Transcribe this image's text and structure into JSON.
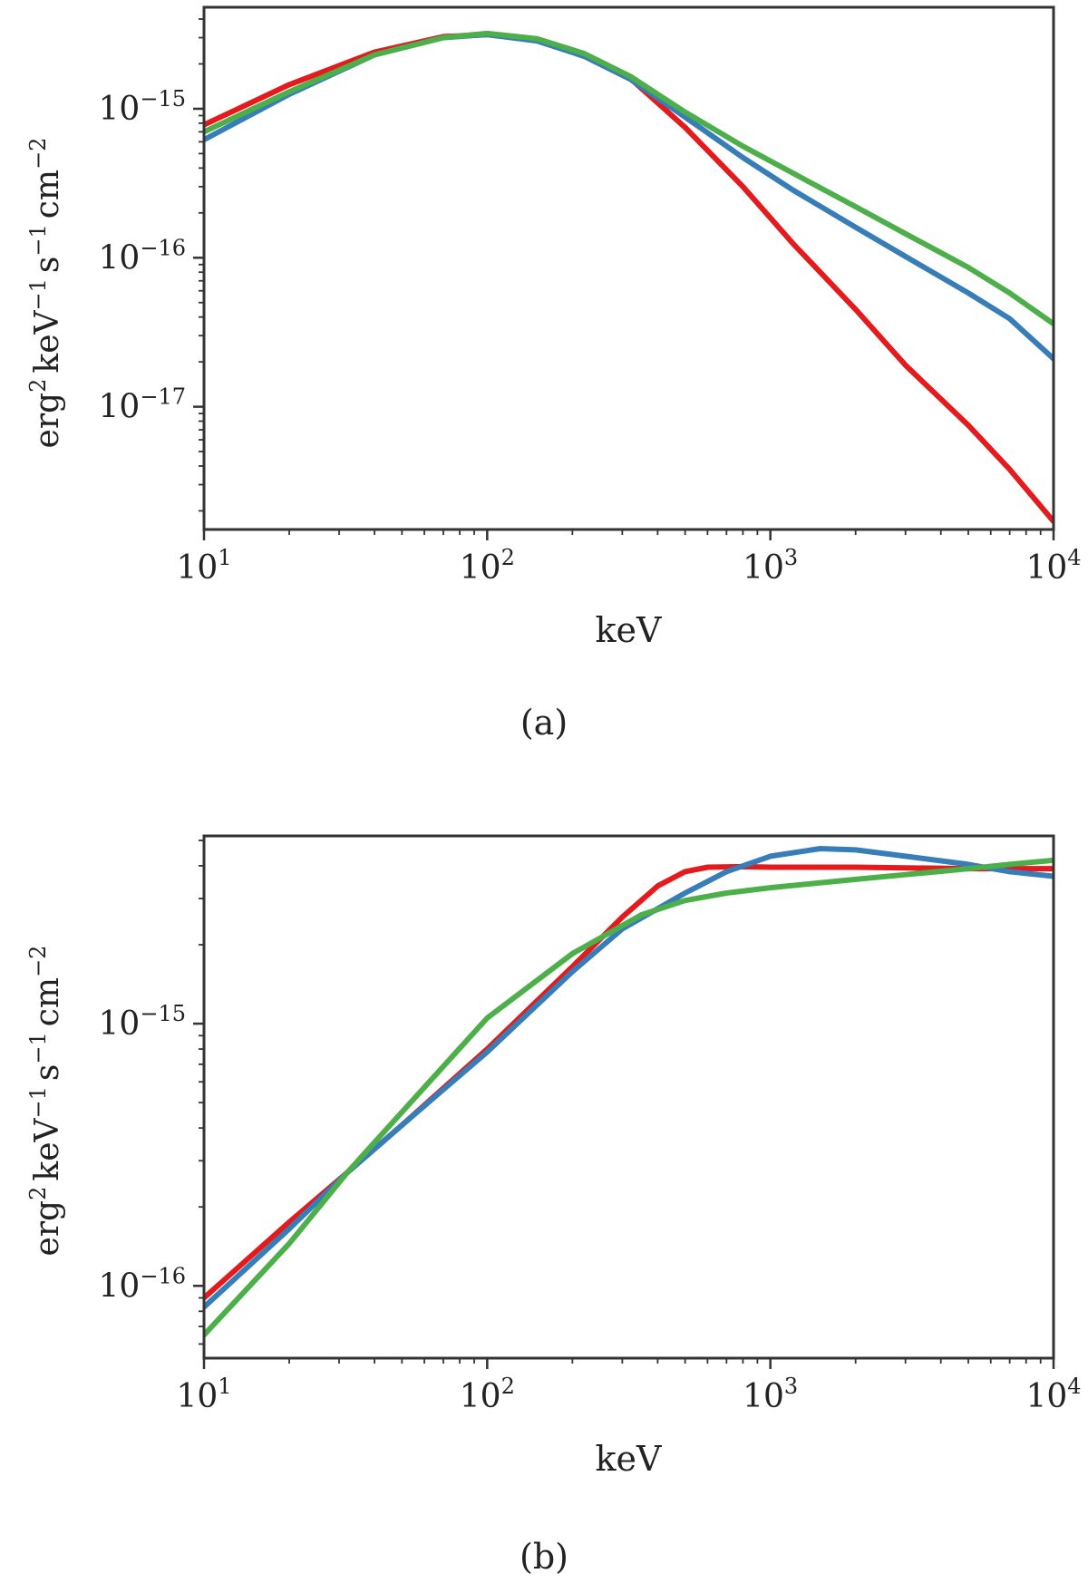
{
  "figure": {
    "description_labels": [
      "(a)",
      "(b)"
    ]
  },
  "colors": {
    "red": "#e41a1c",
    "blue": "#377eb8",
    "green": "#4daf4a",
    "axis": "#333333",
    "text": "#222222"
  },
  "chart_data": [
    {
      "panel_label": "(a)",
      "type": "line",
      "xscale": "log",
      "yscale": "log",
      "xlabel": "keV",
      "ylabel_parts": {
        "erg": "erg",
        "erg_exp": "2",
        "kev": "keV",
        "kev_exp": "−1",
        "s": "s",
        "s_exp": "−1",
        "cm": "cm",
        "cm_exp": "−2"
      },
      "xlim": [
        10,
        10000
      ],
      "ylim": [
        1.5e-18,
        4.8e-15
      ],
      "xticks": [
        {
          "value": 10,
          "base": "10",
          "exp": "1"
        },
        {
          "value": 100,
          "base": "10",
          "exp": "2"
        },
        {
          "value": 1000,
          "base": "10",
          "exp": "3"
        },
        {
          "value": 10000,
          "base": "10",
          "exp": "4"
        }
      ],
      "yticks": [
        {
          "value": 1e-15,
          "base": "10",
          "exp": "−15"
        },
        {
          "value": 1e-16,
          "base": "10",
          "exp": "−16"
        },
        {
          "value": 1e-17,
          "base": "10",
          "exp": "−17"
        }
      ],
      "series": [
        {
          "name": "red",
          "color": "#e41a1c",
          "x": [
            10,
            20,
            40,
            70,
            100,
            150,
            220,
            320,
            500,
            800,
            1200,
            2000,
            3000,
            5000,
            7000,
            10000
          ],
          "y": [
            7.8e-16,
            1.45e-15,
            2.4e-15,
            3.05e-15,
            3.15e-15,
            2.9e-15,
            2.3e-15,
            1.6e-15,
            7.5e-16,
            3e-16,
            1.25e-16,
            4.5e-17,
            1.9e-17,
            7.5e-18,
            3.8e-18,
            1.7e-18
          ]
        },
        {
          "name": "blue",
          "color": "#377eb8",
          "x": [
            10,
            20,
            40,
            70,
            100,
            150,
            220,
            320,
            500,
            800,
            1200,
            2000,
            3000,
            5000,
            7000,
            10000
          ],
          "y": [
            6.2e-16,
            1.25e-15,
            2.3e-15,
            3e-15,
            3.15e-15,
            2.85e-15,
            2.25e-15,
            1.58e-15,
            8.8e-16,
            4.7e-16,
            2.85e-16,
            1.6e-16,
            1.02e-16,
            5.8e-17,
            3.9e-17,
            2.1e-17
          ]
        },
        {
          "name": "green",
          "color": "#4daf4a",
          "x": [
            10,
            20,
            40,
            70,
            100,
            150,
            220,
            320,
            500,
            800,
            1200,
            2000,
            3000,
            5000,
            7000,
            10000
          ],
          "y": [
            7e-16,
            1.3e-15,
            2.3e-15,
            3e-15,
            3.2e-15,
            2.95e-15,
            2.35e-15,
            1.65e-15,
            9.5e-16,
            5.6e-16,
            3.7e-16,
            2.2e-16,
            1.45e-16,
            8.6e-17,
            5.8e-17,
            3.6e-17
          ]
        }
      ]
    },
    {
      "panel_label": "(b)",
      "type": "line",
      "xscale": "log",
      "yscale": "log",
      "xlabel": "keV",
      "ylabel_parts": {
        "erg": "erg",
        "erg_exp": "2",
        "kev": "keV",
        "kev_exp": "−1",
        "s": "s",
        "s_exp": "−1",
        "cm": "cm",
        "cm_exp": "−2"
      },
      "xlim": [
        10,
        10000
      ],
      "ylim": [
        5.3e-17,
        5.2e-15
      ],
      "xticks": [
        {
          "value": 10,
          "base": "10",
          "exp": "1"
        },
        {
          "value": 100,
          "base": "10",
          "exp": "2"
        },
        {
          "value": 1000,
          "base": "10",
          "exp": "3"
        },
        {
          "value": 10000,
          "base": "10",
          "exp": "4"
        }
      ],
      "yticks": [
        {
          "value": 1e-15,
          "base": "10",
          "exp": "−15"
        },
        {
          "value": 1e-16,
          "base": "10",
          "exp": "−16"
        }
      ],
      "series": [
        {
          "name": "red",
          "color": "#e41a1c",
          "x": [
            10,
            20,
            32,
            50,
            100,
            200,
            300,
            400,
            500,
            600,
            800,
            1000,
            2000,
            5000,
            10000
          ],
          "y": [
            9e-17,
            1.75e-16,
            2.7e-16,
            4.1e-16,
            8e-16,
            1.65e-15,
            2.55e-15,
            3.35e-15,
            3.8e-15,
            3.95e-15,
            3.97e-15,
            3.95e-15,
            3.95e-15,
            3.9e-15,
            3.9e-15
          ]
        },
        {
          "name": "blue",
          "color": "#377eb8",
          "x": [
            10,
            20,
            32,
            50,
            100,
            200,
            300,
            500,
            700,
            1000,
            1500,
            2000,
            3000,
            5000,
            7000,
            10000
          ],
          "y": [
            8.3e-17,
            1.65e-16,
            2.7e-16,
            4.1e-16,
            7.8e-16,
            1.58e-15,
            2.3e-15,
            3.15e-15,
            3.8e-15,
            4.35e-15,
            4.65e-15,
            4.6e-15,
            4.35e-15,
            4.05e-15,
            3.8e-15,
            3.65e-15
          ]
        },
        {
          "name": "green",
          "color": "#4daf4a",
          "x": [
            10,
            20,
            32,
            50,
            100,
            200,
            350,
            500,
            700,
            1000,
            2000,
            3000,
            5000,
            7000,
            10000
          ],
          "y": [
            6.5e-17,
            1.45e-16,
            2.7e-16,
            4.6e-16,
            1.05e-15,
            1.85e-15,
            2.6e-15,
            2.95e-15,
            3.15e-15,
            3.3e-15,
            3.55e-15,
            3.7e-15,
            3.9e-15,
            4.05e-15,
            4.2e-15
          ]
        }
      ]
    }
  ]
}
